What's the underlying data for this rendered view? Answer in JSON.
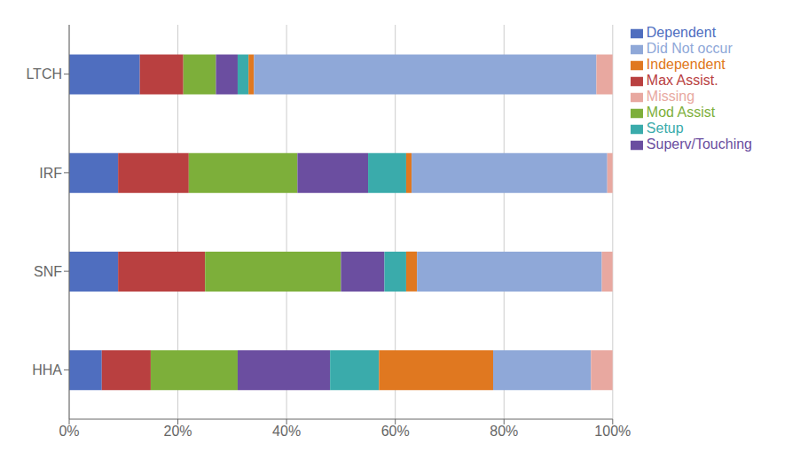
{
  "chart_data": {
    "type": "bar",
    "orientation": "horizontal",
    "stacked": true,
    "categories": [
      "LTCH",
      "IRF",
      "SNF",
      "HHA"
    ],
    "series": [
      {
        "name": "Dependent",
        "color": "#4F6EBF",
        "values": [
          13.0,
          9.0,
          9.0,
          6.0
        ]
      },
      {
        "name": "Max Assist.",
        "color": "#B94040",
        "values": [
          8.0,
          13.0,
          16.0,
          9.0
        ]
      },
      {
        "name": "Mod Assist",
        "color": "#7DAF3A",
        "values": [
          6.0,
          20.0,
          25.0,
          16.0
        ]
      },
      {
        "name": "Superv/Touching",
        "color": "#6B4EA0",
        "values": [
          4.0,
          13.0,
          8.0,
          17.0
        ]
      },
      {
        "name": "Setup",
        "color": "#3AABAB",
        "values": [
          2.0,
          7.0,
          4.0,
          9.0
        ]
      },
      {
        "name": "Independent",
        "color": "#E07820",
        "values": [
          1.0,
          1.0,
          2.0,
          21.0
        ]
      },
      {
        "name": "Did Not occur",
        "color": "#8FA8D8",
        "values": [
          63.0,
          36.0,
          34.0,
          18.0
        ]
      },
      {
        "name": "Missing",
        "color": "#E8A8A0",
        "values": [
          3.0,
          1.0,
          2.0,
          4.0
        ]
      }
    ],
    "xlim": [
      0,
      100
    ],
    "xticks": [
      {
        "value": 0,
        "label": "0%"
      },
      {
        "value": 20,
        "label": "20%"
      },
      {
        "value": 40,
        "label": "40%"
      },
      {
        "value": 60,
        "label": "60%"
      },
      {
        "value": 80,
        "label": "80%"
      },
      {
        "value": 100,
        "label": "100%"
      }
    ],
    "grid": true,
    "legend": "right"
  }
}
